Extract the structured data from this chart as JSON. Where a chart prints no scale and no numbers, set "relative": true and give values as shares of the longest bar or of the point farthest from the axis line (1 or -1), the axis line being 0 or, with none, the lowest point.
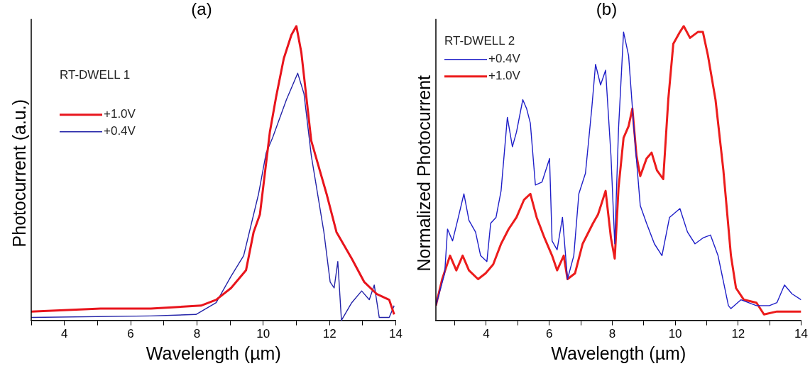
{
  "chart_data": [
    {
      "type": "line",
      "title": "(a)",
      "xlabel": "Wavelength (µm)",
      "ylabel": "Photocurrent (a.u.)",
      "relative": true,
      "legend": "top left",
      "grid": false,
      "marker": "none",
      "line_style": "solid",
      "annotations": [
        "RT-DWELL 1"
      ],
      "xlim": [
        3,
        14
      ],
      "xticks": [
        {
          "value": 3,
          "label": null
        },
        4,
        {
          "value": 5,
          "label": null
        },
        6,
        {
          "value": 7,
          "label": null
        },
        8,
        {
          "value": 9,
          "label": null
        },
        10,
        {
          "value": 11,
          "label": null
        },
        12,
        {
          "value": 13,
          "label": null
        },
        14
      ],
      "series": [
        {
          "name": "+1.0V",
          "color": "#e8141c",
          "x": [
            3.0,
            5.09,
            6.61,
            8.12,
            8.58,
            9.03,
            9.48,
            9.71,
            9.9,
            10.2,
            10.39,
            10.62,
            10.85,
            11.0,
            11.15,
            11.45,
            11.91,
            12.21,
            12.67,
            13.05,
            13.42,
            13.8,
            13.95
          ],
          "values": [
            0.03,
            0.04,
            0.04,
            0.05,
            0.07,
            0.11,
            0.17,
            0.3,
            0.36,
            0.64,
            0.76,
            0.89,
            0.97,
            1.0,
            0.91,
            0.61,
            0.43,
            0.3,
            0.21,
            0.13,
            0.09,
            0.07,
            0.02
          ]
        },
        {
          "name": "+0.4V",
          "color": "#2323a8",
          "x": [
            3.0,
            6.6,
            7.97,
            8.58,
            9.03,
            9.41,
            9.86,
            10.09,
            10.28,
            10.7,
            11.04,
            11.23,
            11.45,
            11.83,
            12.02,
            12.14,
            12.25,
            12.36,
            12.67,
            12.97,
            13.2,
            13.35,
            13.5,
            13.8,
            13.95
          ],
          "values": [
            0.01,
            0.015,
            0.02,
            0.06,
            0.15,
            0.22,
            0.43,
            0.57,
            0.62,
            0.75,
            0.84,
            0.77,
            0.56,
            0.3,
            0.13,
            0.11,
            0.2,
            0.0,
            0.06,
            0.1,
            0.07,
            0.12,
            0.01,
            0.01,
            0.05
          ]
        }
      ]
    },
    {
      "type": "line",
      "title": "(b)",
      "xlabel": "Wavelength (µm)",
      "ylabel": "Normalized Photocurrent",
      "relative": true,
      "legend": "top left",
      "grid": false,
      "marker": "none",
      "line_style": "solid",
      "annotations": [
        "RT-DWELL 2"
      ],
      "xlim": [
        2.4,
        14
      ],
      "xticks": [
        {
          "value": 3,
          "label": null
        },
        4,
        {
          "value": 5,
          "label": null
        },
        6,
        {
          "value": 7,
          "label": null
        },
        8,
        {
          "value": 9,
          "label": null
        },
        10,
        {
          "value": 11,
          "label": null
        },
        12,
        {
          "value": 13,
          "label": null
        },
        14
      ],
      "series": [
        {
          "name": "+0.4V",
          "color": "#1f1fc8",
          "x": [
            2.4,
            2.68,
            2.77,
            2.93,
            3.09,
            3.29,
            3.45,
            3.66,
            3.82,
            4.02,
            4.14,
            4.31,
            4.47,
            4.67,
            4.83,
            4.96,
            5.16,
            5.28,
            5.4,
            5.56,
            5.77,
            6.01,
            6.09,
            6.25,
            6.42,
            6.58,
            6.78,
            6.94,
            7.15,
            7.35,
            7.47,
            7.63,
            7.79,
            7.96,
            8.08,
            8.2,
            8.36,
            8.52,
            8.69,
            8.89,
            9.09,
            9.34,
            9.58,
            9.82,
            10.15,
            10.39,
            10.63,
            10.88,
            11.12,
            11.36,
            11.69,
            11.77,
            12.09,
            12.58,
            12.99,
            13.23,
            13.47,
            13.71,
            14.0
          ],
          "values": [
            0.05,
            0.16,
            0.31,
            0.27,
            0.34,
            0.43,
            0.34,
            0.3,
            0.22,
            0.2,
            0.33,
            0.35,
            0.44,
            0.69,
            0.59,
            0.64,
            0.75,
            0.72,
            0.67,
            0.46,
            0.47,
            0.55,
            0.27,
            0.24,
            0.35,
            0.14,
            0.22,
            0.43,
            0.5,
            0.72,
            0.87,
            0.8,
            0.85,
            0.56,
            0.26,
            0.65,
            0.98,
            0.9,
            0.65,
            0.39,
            0.33,
            0.26,
            0.22,
            0.35,
            0.38,
            0.3,
            0.26,
            0.28,
            0.29,
            0.22,
            0.05,
            0.04,
            0.07,
            0.05,
            0.05,
            0.06,
            0.12,
            0.09,
            0.07
          ]
        },
        {
          "name": "+1.0V",
          "color": "#ec1c1c",
          "x": [
            2.4,
            2.6,
            2.85,
            3.05,
            3.25,
            3.45,
            3.74,
            3.98,
            4.22,
            4.47,
            4.71,
            4.96,
            5.2,
            5.4,
            5.6,
            5.85,
            6.09,
            6.25,
            6.46,
            6.58,
            6.82,
            7.06,
            7.39,
            7.55,
            7.79,
            7.96,
            8.08,
            8.2,
            8.36,
            8.52,
            8.64,
            8.77,
            8.89,
            9.09,
            9.25,
            9.42,
            9.62,
            9.78,
            9.94,
            10.15,
            10.27,
            10.47,
            10.72,
            10.88,
            11.04,
            11.28,
            11.53,
            11.77,
            11.93,
            12.18,
            12.58,
            12.82,
            13.23,
            13.64,
            14.0
          ],
          "values": [
            0.05,
            0.14,
            0.22,
            0.17,
            0.22,
            0.17,
            0.14,
            0.16,
            0.19,
            0.26,
            0.31,
            0.35,
            0.41,
            0.43,
            0.35,
            0.28,
            0.22,
            0.17,
            0.22,
            0.14,
            0.16,
            0.26,
            0.33,
            0.36,
            0.44,
            0.28,
            0.21,
            0.45,
            0.62,
            0.66,
            0.72,
            0.56,
            0.49,
            0.55,
            0.57,
            0.51,
            0.48,
            0.75,
            0.94,
            0.98,
            1.0,
            0.96,
            0.98,
            0.98,
            0.9,
            0.75,
            0.51,
            0.22,
            0.11,
            0.07,
            0.06,
            0.02,
            0.03,
            0.03,
            0.03
          ]
        }
      ]
    }
  ]
}
